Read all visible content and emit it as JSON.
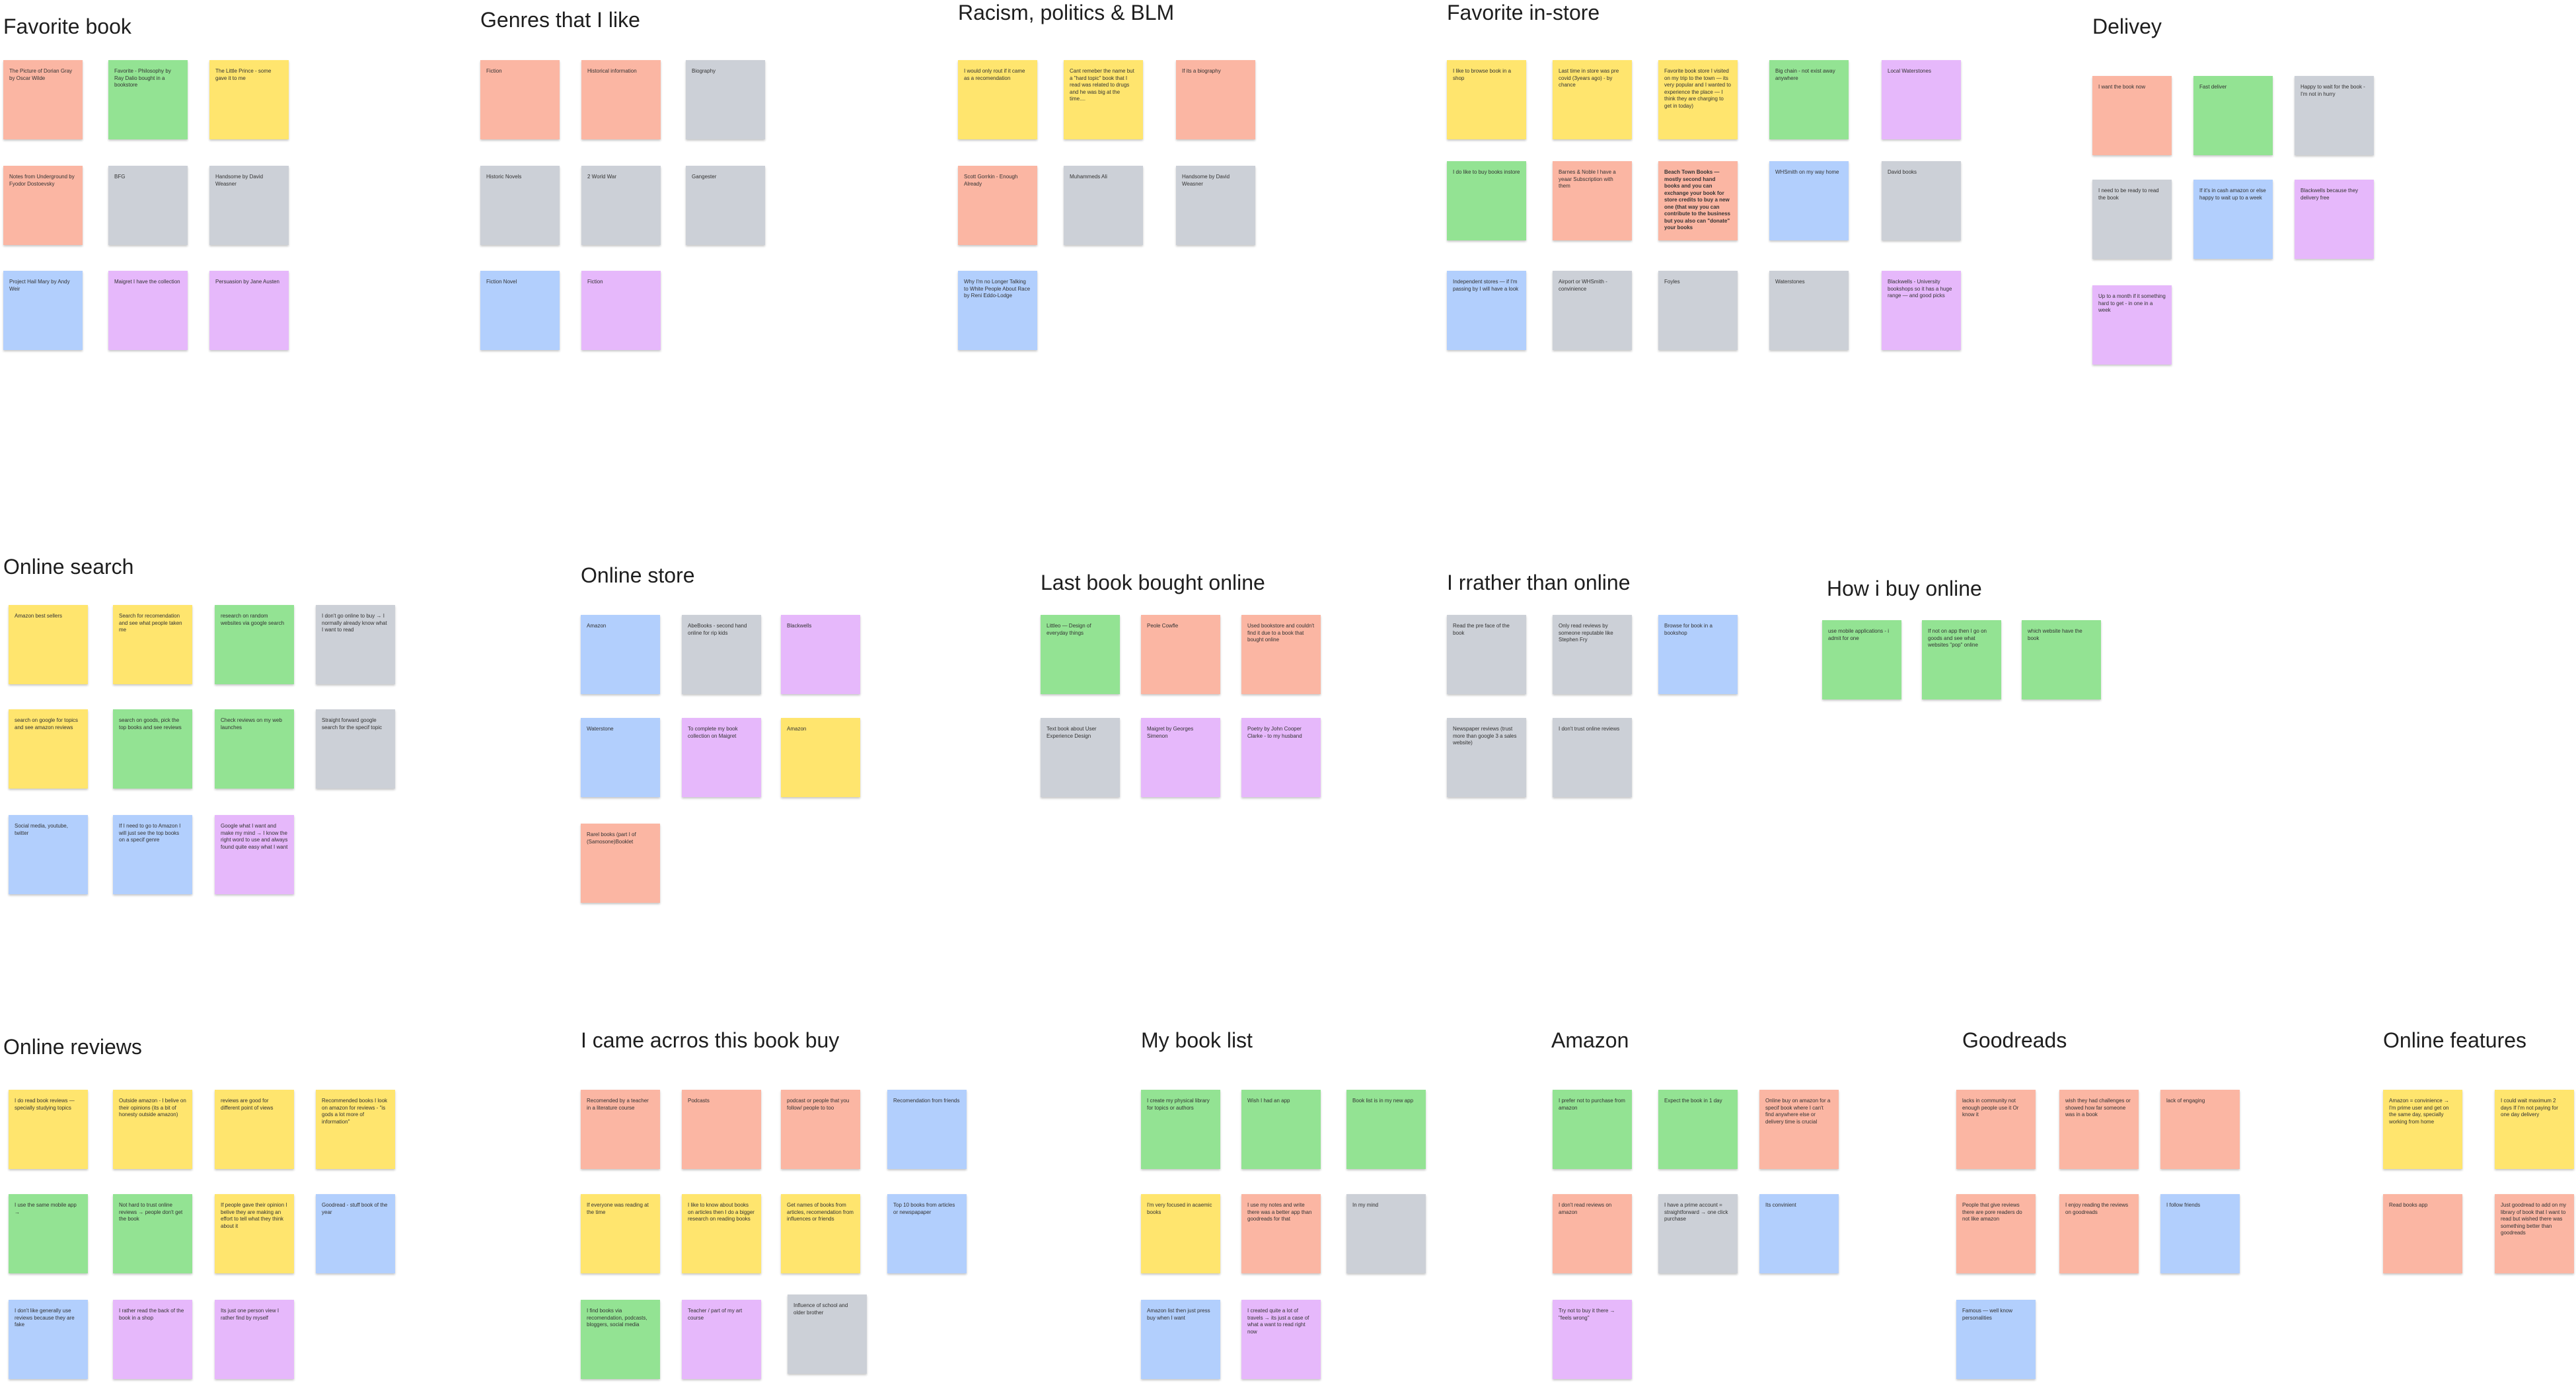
{
  "clusters": [
    {
      "title": "Favorite book",
      "notes": [
        {
          "text": "The Picture of Dorian Gray by Oscar Wilde",
          "color": "pink"
        },
        {
          "text": "Favorite - Philosophy by Ray Dalio bought in a bookstore",
          "color": "green"
        },
        {
          "text": "The Little Prince - some gave it to me",
          "color": "yellow"
        },
        {
          "text": "Notes from Underground by Fyodor Dostoevsky",
          "color": "pink"
        },
        {
          "text": "BFG",
          "color": "gray"
        },
        {
          "text": "Handsome by David Weasner",
          "color": "gray"
        },
        {
          "text": "Project Hail Mary by Andy Weir",
          "color": "blue"
        },
        {
          "text": "Maigret I have the collection",
          "color": "purple"
        },
        {
          "text": "Persuasion by Jane Austen",
          "color": "purple"
        }
      ]
    },
    {
      "title": "Genres that I like",
      "notes": [
        {
          "text": "Fiction",
          "color": "pink"
        },
        {
          "text": "Historical information",
          "color": "pink"
        },
        {
          "text": "Biography",
          "color": "gray"
        },
        {
          "text": "Historic Novels",
          "color": "gray"
        },
        {
          "text": "2 World War",
          "color": "gray"
        },
        {
          "text": "Gangester",
          "color": "gray"
        },
        {
          "text": "Fiction Novel",
          "color": "blue"
        },
        {
          "text": "Fiction",
          "color": "purple"
        }
      ]
    },
    {
      "title": "Racism, politics & BLM",
      "notes": [
        {
          "text": "I would only rout if it came as a recomendation",
          "color": "yellow"
        },
        {
          "text": "Cant remeber the name but a \"hard topic\" book that I read was related to drugs and he was big at the time....",
          "color": "yellow"
        },
        {
          "text": "If its a biography",
          "color": "pink"
        },
        {
          "text": "Scott Gorrkin - Enough Already",
          "color": "pink"
        },
        {
          "text": "Muhammeds Ali",
          "color": "gray"
        },
        {
          "text": "Handsome by David Weasner",
          "color": "gray"
        },
        {
          "text": "Why I'm no Longer Talking to White People About Race by Reni Eddo-Lodge",
          "color": "blue"
        }
      ]
    },
    {
      "title": "Favorite in-store",
      "notes": [
        {
          "text": "I like to browse book in a shop",
          "color": "yellow"
        },
        {
          "text": "Last time in store was pre covid (3years ago) - by chance",
          "color": "yellow"
        },
        {
          "text": "Favorite book store I visited on my trip to the town — its very popular and I wanted to experience the place — I think they are charging to get in today)",
          "color": "yellow"
        },
        {
          "text": "Big chain - not exist away anywhere",
          "color": "green"
        },
        {
          "text": "Local Waterstones",
          "color": "purple"
        },
        {
          "text": "I do like to buy books instore",
          "color": "green"
        },
        {
          "text": "Barnes & Noble I have a yeaar Subscription with them",
          "color": "pink"
        },
        {
          "text": "Beach Town Books — mostly second hand books and you can exchange your book for store credits to buy a new one (that way you can contribute to the business but you also can \"donate\" your books",
          "color": "pink",
          "bold": true
        },
        {
          "text": "WHSmith on my way home",
          "color": "blue"
        },
        {
          "text": "David books",
          "color": "gray"
        },
        {
          "text": "Independent stores — if I'm passing by I will have a look",
          "color": "blue"
        },
        {
          "text": "Airport or WHSmith - convinience",
          "color": "gray"
        },
        {
          "text": "Foyles",
          "color": "gray"
        },
        {
          "text": "Waterstones",
          "color": "gray"
        },
        {
          "text": "Blackwells - University bookshops so it has a huge range — and good picks",
          "color": "purple"
        }
      ]
    },
    {
      "title": "Delivey",
      "notes": [
        {
          "text": "I want the book now",
          "color": "pink"
        },
        {
          "text": "Fast deliver",
          "color": "green"
        },
        {
          "text": "Happy to wait for the book - I'm not in hurry",
          "color": "gray"
        },
        {
          "text": "I need to be ready to read the book",
          "color": "gray"
        },
        {
          "text": "If it's in cash amazon or else happy to wait up to a week",
          "color": "blue"
        },
        {
          "text": "Blackwells because they delivery free",
          "color": "purple"
        },
        {
          "text": "Up to a month if it something hard to get - in one in a week",
          "color": "purple"
        }
      ]
    },
    {
      "title": "Online search",
      "notes": [
        {
          "text": "Amazon best sellers",
          "color": "yellow"
        },
        {
          "text": "Search for recomendation and see what people taken me",
          "color": "yellow"
        },
        {
          "text": "research on random websites via google search",
          "color": "green"
        },
        {
          "text": "I don't go online to buy → I normally already know what I want to read",
          "color": "gray"
        },
        {
          "text": "search on google for topics and see amazon reviews",
          "color": "yellow"
        },
        {
          "text": "search on goods, pick the top books and see reviews",
          "color": "green"
        },
        {
          "text": "Check reviews on my web launches",
          "color": "green"
        },
        {
          "text": "Straight forward google search for the specif topic",
          "color": "gray"
        },
        {
          "text": "Social media, youtube, twitter",
          "color": "blue"
        },
        {
          "text": "If I need to go to Amazon I will just see the top books on a specif genre",
          "color": "blue"
        },
        {
          "text": "Google what I want and make my mind → I know the right word to use and always found quite easy what I want",
          "color": "purple"
        }
      ]
    },
    {
      "title": "Online store",
      "notes": [
        {
          "text": "Amazon",
          "color": "blue"
        },
        {
          "text": "AbeBooks - second hand online for rip kids",
          "color": "gray"
        },
        {
          "text": "Blackwells",
          "color": "purple"
        },
        {
          "text": "Waterstone",
          "color": "blue"
        },
        {
          "text": "To complete my book collection on Maigret",
          "color": "purple"
        },
        {
          "text": "Amazon",
          "color": "yellow"
        },
        {
          "text": "Rarel books (part I of (Samosone)Booklet",
          "color": "pink"
        }
      ]
    },
    {
      "title": "Last book bought online",
      "notes": [
        {
          "text": "Littleo — Design of everyday things",
          "color": "green"
        },
        {
          "text": "Peole Cowfle",
          "color": "pink"
        },
        {
          "text": "Used bookstore and couldn't find it due to a book that bought online",
          "color": "pink"
        },
        {
          "text": "Text book about User Experience Design",
          "color": "gray"
        },
        {
          "text": "Maigret by Georges Simenon",
          "color": "purple"
        },
        {
          "text": "Poetry by John Cooper Clarke - to my husband",
          "color": "purple"
        }
      ]
    },
    {
      "title": "I rrather than online",
      "notes": [
        {
          "text": "Read the pre face of the book",
          "color": "gray"
        },
        {
          "text": "Only read reviews by someone reputable like Stephen Fry",
          "color": "gray"
        },
        {
          "text": "Browse for book in a bookshop",
          "color": "blue"
        },
        {
          "text": "Newspaper reviews (trust more than google 3 a sales website)",
          "color": "gray"
        },
        {
          "text": "I don't trust online reviews",
          "color": "gray"
        }
      ]
    },
    {
      "title": "How i buy online",
      "notes": [
        {
          "text": "use mobile applications - i admit for one",
          "color": "green"
        },
        {
          "text": "If not on app then I go on goods and see what websites \"pop\" online",
          "color": "green"
        },
        {
          "text": "which website have the book",
          "color": "green"
        }
      ]
    },
    {
      "title": "Online reviews",
      "notes": [
        {
          "text": "I do read book reviews — specially studying topics",
          "color": "yellow"
        },
        {
          "text": "Outside amazon - I belive on their opinions (its a bit of honesty outside amazon)",
          "color": "yellow"
        },
        {
          "text": "reviews are good for different point of views",
          "color": "yellow"
        },
        {
          "text": "Recommended books I look on amazon for reviews - \"is gods a lot more of information\"",
          "color": "yellow"
        },
        {
          "text": "I use the same mobile app →",
          "color": "green"
        },
        {
          "text": "Not hard to trust online reviews → people don't get the book",
          "color": "green"
        },
        {
          "text": "If people gave their opinion I belive they are making an effort to tell what they think about it",
          "color": "yellow"
        },
        {
          "text": "Goodread - stuff book of the year",
          "color": "blue"
        },
        {
          "text": "I don't like generally use reviews because they are fake",
          "color": "blue"
        },
        {
          "text": "I rather read the back of the book in a shop",
          "color": "purple"
        },
        {
          "text": "Its just one person view I rather find by myself",
          "color": "purple"
        }
      ]
    },
    {
      "title": "I came acrros this book buy",
      "notes": [
        {
          "text": "Recomended by a teacher in a literature course",
          "color": "pink"
        },
        {
          "text": "Podcasts",
          "color": "pink"
        },
        {
          "text": "podcast or people that you follow/ people to too",
          "color": "pink"
        },
        {
          "text": "Recomendation from friends",
          "color": "blue"
        },
        {
          "text": "If everyone was reading at the time",
          "color": "yellow"
        },
        {
          "text": "I like to know about books on articles then I do a bigger research on reading books",
          "color": "yellow"
        },
        {
          "text": "Get names of books from articles, recomendation from influences or friends",
          "color": "yellow"
        },
        {
          "text": "Top 10 books from articles or newspapaper",
          "color": "blue"
        },
        {
          "text": "I find books via recomendation, podcasts, bloggers, social media",
          "color": "green"
        },
        {
          "text": "Teacher / part of my art course",
          "color": "purple"
        },
        {
          "text": "Influence of school and older brother",
          "color": "gray"
        }
      ]
    },
    {
      "title": "My book list",
      "notes": [
        {
          "text": "I create my physical library for topics or authors",
          "color": "green"
        },
        {
          "text": "Wish I had an app",
          "color": "green"
        },
        {
          "text": "Book list is in my new app",
          "color": "green"
        },
        {
          "text": "I'm very focused in acaemic books",
          "color": "yellow"
        },
        {
          "text": "I use my notes and write there was a better app than goodreads for that",
          "color": "pink"
        },
        {
          "text": "In my mind",
          "color": "gray"
        },
        {
          "text": "Amazon list then just press buy when I want",
          "color": "blue"
        },
        {
          "text": "I created quite a lot of travels → its just a case of what a want to read right now",
          "color": "purple"
        }
      ]
    },
    {
      "title": "Amazon",
      "notes": [
        {
          "text": "I prefer not to purchase from amazon",
          "color": "green"
        },
        {
          "text": "Expect the book in 1 day",
          "color": "green"
        },
        {
          "text": "Online buy on amazon for a specif book where I can't find anywhere else or delivery time is crucial",
          "color": "pink"
        },
        {
          "text": "I don't read reviews on amazon",
          "color": "pink"
        },
        {
          "text": "I have a prime account = straightforward → one click purchase",
          "color": "gray"
        },
        {
          "text": "Its convinient",
          "color": "blue"
        },
        {
          "text": "Try not to buy it there → \"feels wrong\"",
          "color": "purple"
        }
      ]
    },
    {
      "title": "Goodreads",
      "notes": [
        {
          "text": "lacks in community not enough people use it Or know it",
          "color": "pink"
        },
        {
          "text": "wish they had challenges or showed how far someone was in a book",
          "color": "pink"
        },
        {
          "text": "lack of engaging",
          "color": "pink"
        },
        {
          "text": "People that give reviews there are pore readers do not like amazon",
          "color": "pink"
        },
        {
          "text": "I enjoy reading the reviews on goodreads",
          "color": "pink"
        },
        {
          "text": "I follow friends",
          "color": "blue"
        },
        {
          "text": "Famous — well know personalities",
          "color": "blue"
        }
      ]
    },
    {
      "title": "Online features",
      "notes": [
        {
          "text": "Amazon = convinience → I'm prime user and get on the same day, specially working from home",
          "color": "yellow"
        },
        {
          "text": "I could wait maximum 2 days If I'm not paying for one day delivery",
          "color": "yellow"
        },
        {
          "text": "Read books app",
          "color": "pink"
        },
        {
          "text": "Just goodread to add on my library of book that I want to read but wished there was something better than goodreads",
          "color": "pink"
        }
      ]
    }
  ]
}
